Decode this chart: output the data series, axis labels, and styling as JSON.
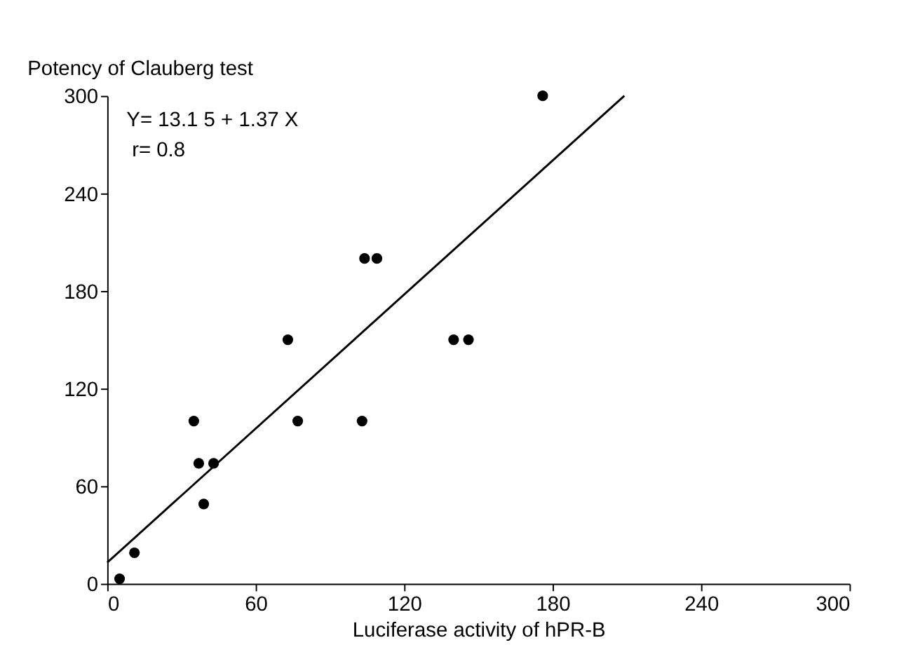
{
  "chart_data": {
    "type": "scatter",
    "ylabel": "Potency of Clauberg test",
    "xlabel": "Luciferase activity of hPR-B",
    "xlim": [
      0,
      300
    ],
    "xticks": [
      0,
      60,
      120,
      180,
      240,
      300
    ],
    "ylim": [
      0,
      300
    ],
    "yticks": [
      0,
      60,
      120,
      180,
      240,
      300
    ],
    "grid": false,
    "marker": "circle",
    "annotations": [
      "Y= 13.1 5 + 1.37 X",
      "r= 0.8"
    ],
    "series": [
      {
        "color": "#000000",
        "x": [
          5,
          11,
          35,
          37,
          39,
          43,
          73,
          77,
          103,
          104,
          109,
          140,
          146,
          176
        ],
        "values": [
          3,
          19,
          100,
          74,
          49,
          74,
          150,
          100,
          100,
          200,
          200,
          150,
          150,
          300
        ]
      },
      {
        "type": "line",
        "color": "#000000",
        "line_style": "solid",
        "marker": "none",
        "x": [
          0,
          209
        ],
        "values": [
          13,
          300
        ]
      }
    ]
  }
}
